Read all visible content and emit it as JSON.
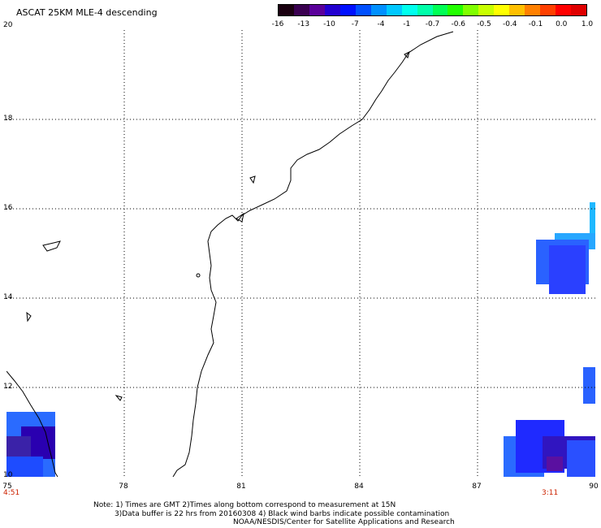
{
  "title": "ASCAT 25KM MLE-4 descending",
  "colorbar": {
    "labels": [
      "-16",
      "-13",
      "-10",
      "-7",
      "-4",
      "-1",
      "-0.7",
      "-0.6",
      "-0.5",
      "-0.4",
      "-0.1",
      "0.0",
      "1.0"
    ],
    "colors": [
      "#1a0010",
      "#3a0050",
      "#5a009a",
      "#2200d0",
      "#0010ff",
      "#0050ff",
      "#0090ff",
      "#00c8ff",
      "#00ffee",
      "#00ffaa",
      "#00ff55",
      "#22ff00",
      "#80ff00",
      "#c8ff00",
      "#ffff00",
      "#ffc000",
      "#ff8000",
      "#ff4000",
      "#ff0000",
      "#e00000"
    ]
  },
  "axes": {
    "x_ticks": [
      "75",
      "78",
      "81",
      "84",
      "87",
      "90"
    ],
    "y_ticks": [
      "20",
      "18",
      "16",
      "14",
      "12",
      "10"
    ]
  },
  "times": {
    "left": "4:51",
    "right": "3:11"
  },
  "notes": {
    "line1": "Note: 1) Times are GMT 2)Times along bottom correspond to measurement at 15N",
    "line2": "3)Data buffer is 22 hrs from 20160308 4) Black wind barbs indicate possible contamination",
    "line3": "NOAA/NESDIS/Center for Satellite Applications and Research"
  }
}
